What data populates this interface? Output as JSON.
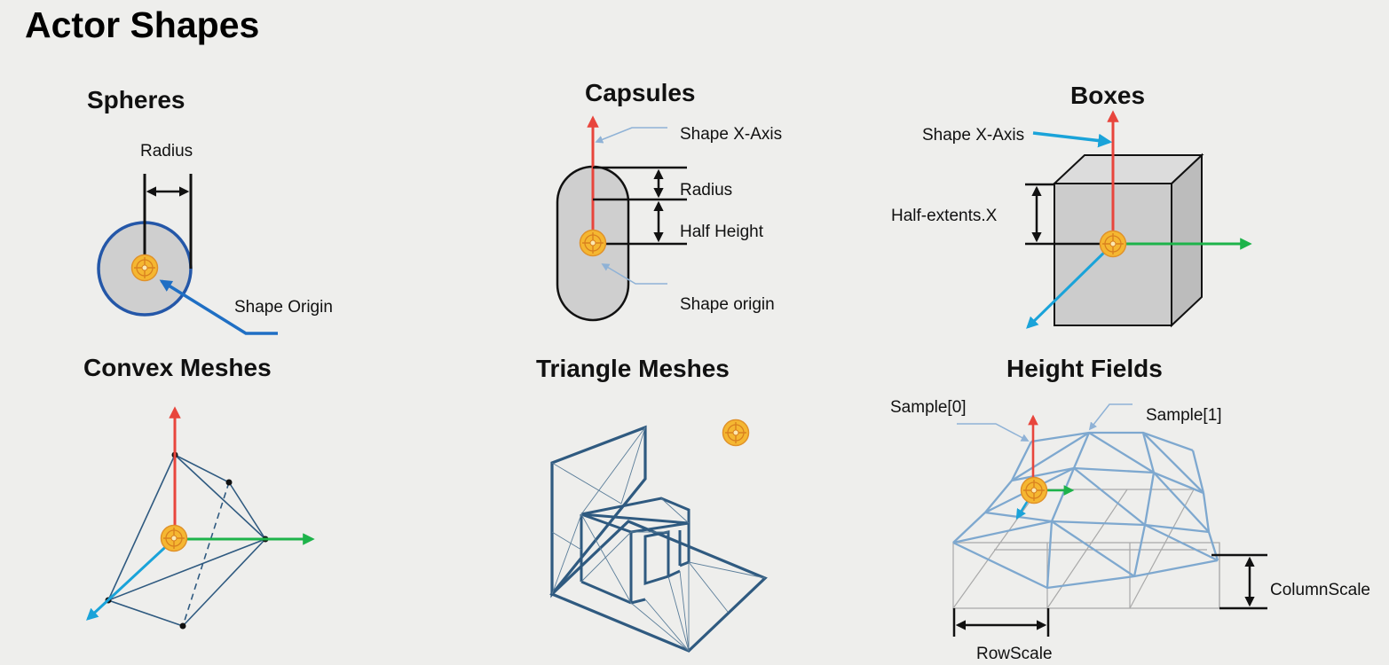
{
  "slide": {
    "title": "Actor Shapes",
    "colors": {
      "background": "#eeeeec",
      "x_axis": "#e8453c",
      "y_axis": "#1db34a",
      "z_axis": "#1aa3d9",
      "shape_fill": "#cfcfcf",
      "outline_blue": "#2457a8",
      "mesh": "#2f5a80",
      "heightfield": "#7ea8cf",
      "origin_marker": "#f5b731"
    },
    "panels": {
      "spheres": {
        "heading": "Spheres",
        "label_radius": "Radius",
        "label_origin": "Shape Origin"
      },
      "capsules": {
        "heading": "Capsules",
        "label_x_axis": "Shape X-Axis",
        "label_radius": "Radius",
        "label_half_height": "Half Height",
        "label_origin": "Shape origin"
      },
      "boxes": {
        "heading": "Boxes",
        "label_x_axis": "Shape X-Axis",
        "label_half_extents": "Half-extents.X"
      },
      "convex_meshes": {
        "heading": "Convex Meshes"
      },
      "triangle_meshes": {
        "heading": "Triangle Meshes"
      },
      "height_fields": {
        "heading": "Height Fields",
        "label_sample0": "Sample[0]",
        "label_sample1": "Sample[1]",
        "label_column_scale": "ColumnScale",
        "label_row_scale": "RowScale"
      }
    }
  }
}
